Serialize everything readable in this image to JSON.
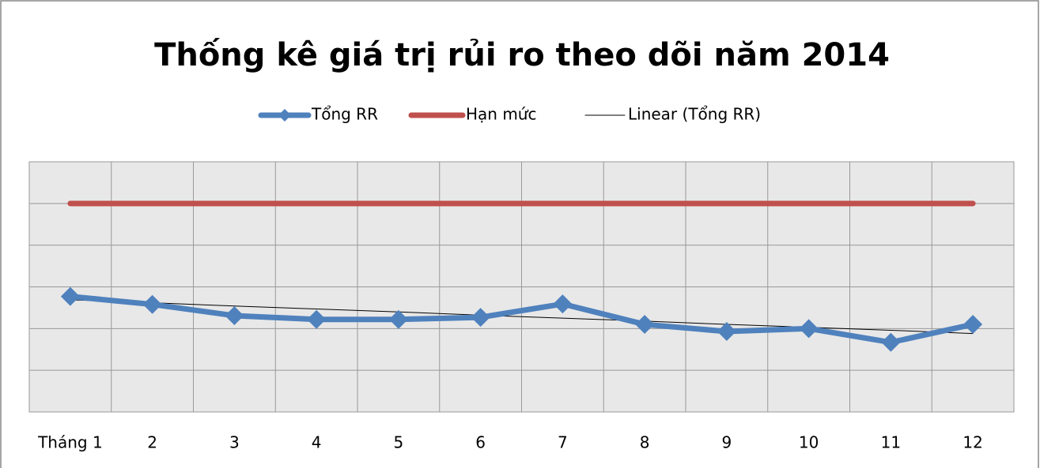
{
  "chart_data": {
    "type": "line",
    "title": "Thống kê giá trị rủi ro theo dõi năm 2014",
    "categories": [
      "Tháng 1",
      "2",
      "3",
      "4",
      "5",
      "6",
      "7",
      "8",
      "9",
      "10",
      "11",
      "12"
    ],
    "series": [
      {
        "name": "Tổng RR",
        "color": "#4f81bd",
        "marker": "diamond",
        "width": 7,
        "values": [
          2.77,
          2.58,
          2.31,
          2.22,
          2.22,
          2.27,
          2.59,
          2.1,
          1.93,
          2.0,
          1.67,
          2.1
        ]
      },
      {
        "name": "Hạn mức",
        "color": "#c0504d",
        "width": 7,
        "values": [
          5,
          5,
          5,
          5,
          5,
          5,
          5,
          5,
          5,
          5,
          5,
          5
        ]
      },
      {
        "name": "Linear (Tổng RR)",
        "color": "#000000",
        "width": 1,
        "values": [
          2.69,
          2.62,
          2.54,
          2.47,
          2.4,
          2.32,
          2.25,
          2.18,
          2.1,
          2.03,
          1.96,
          1.88
        ]
      }
    ],
    "ylim": [
      0,
      6
    ],
    "yticks": [
      0,
      1,
      2,
      3,
      4,
      5,
      6
    ],
    "grid": true,
    "legend": "top"
  }
}
